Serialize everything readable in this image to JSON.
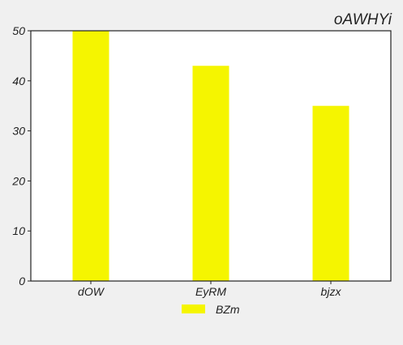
{
  "chart_data": {
    "type": "bar",
    "title": "oAWHYi",
    "xlabel": "",
    "ylabel": "",
    "categories": [
      "dOW",
      "EyRM",
      "bjzx"
    ],
    "series": [
      {
        "name": "BZm",
        "values": [
          50,
          43,
          35
        ],
        "color": "#f5f500"
      }
    ],
    "ylim": [
      0,
      50
    ],
    "yticks": [
      0,
      10,
      20,
      30,
      40,
      50
    ],
    "grid": false,
    "legend": "bottom-center"
  },
  "colors": {
    "background": "#f0f0f0",
    "plot_background": "#ffffff",
    "axis": "#222222",
    "text": "#222222"
  }
}
